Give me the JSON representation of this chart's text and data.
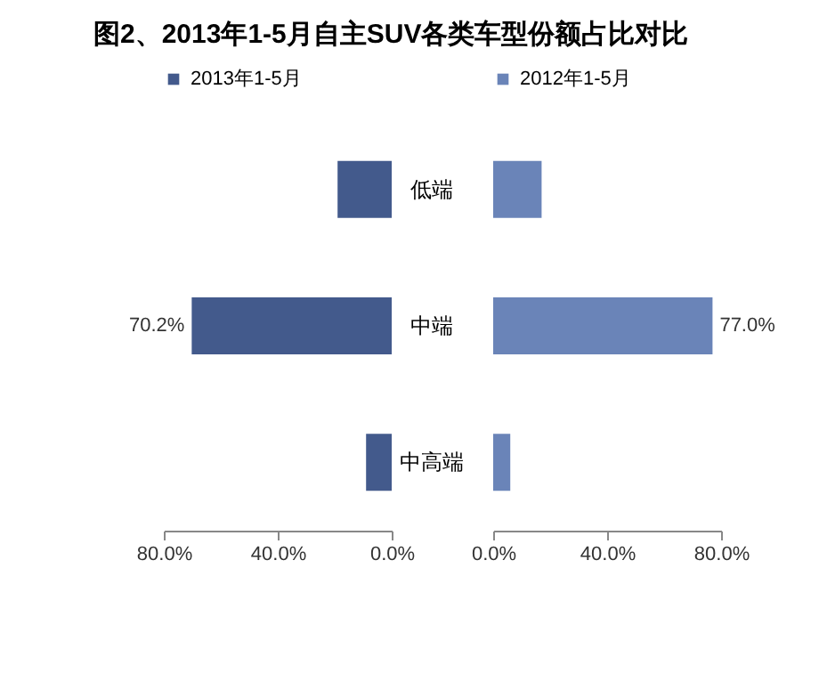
{
  "chart_data": [
    {
      "type": "bar",
      "title": "图2、2013年1-5月自主SUV各类车型份额占比对比",
      "orientation": "horizontal",
      "categories": [
        "低端",
        "中端",
        "中高端"
      ],
      "series": [
        {
          "name": "2013年1-5月",
          "color": "#435a8c",
          "values": [
            19,
            70.2,
            9
          ],
          "value_labels": [
            null,
            "70.2%",
            null
          ]
        }
      ],
      "xlim": [
        80,
        0
      ],
      "xticks": [
        {
          "value": 80,
          "label": "80.0%"
        },
        {
          "value": 40,
          "label": "40.0%"
        },
        {
          "value": 0,
          "label": "0.0%"
        }
      ],
      "legend": "top"
    },
    {
      "type": "bar",
      "orientation": "horizontal",
      "categories": [
        "低端",
        "中端",
        "中高端"
      ],
      "series": [
        {
          "name": "2012年1-5月",
          "color": "#6a84b8",
          "values": [
            17,
            77.0,
            6
          ],
          "value_labels": [
            null,
            "77.0%",
            null
          ]
        }
      ],
      "xlim": [
        0,
        80
      ],
      "xticks": [
        {
          "value": 0,
          "label": "0.0%"
        },
        {
          "value": 40,
          "label": "40.0%"
        },
        {
          "value": 80,
          "label": "80.0%"
        }
      ],
      "legend": "top",
      "tick_labels": "x"
    }
  ]
}
